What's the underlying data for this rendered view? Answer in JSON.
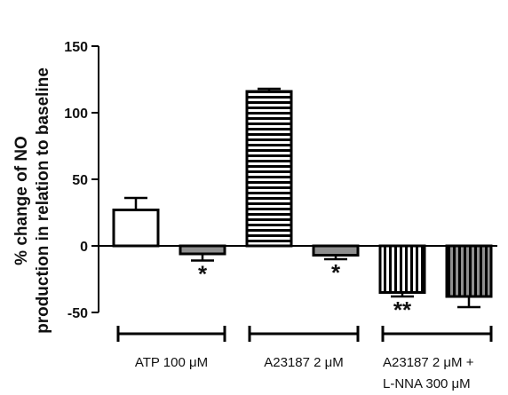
{
  "chart_data": {
    "type": "bar",
    "ylabel_line1": "% change of  NO",
    "ylabel_line2": "production in relation to baseline",
    "ylim": [
      -50,
      150
    ],
    "yticks": [
      -50,
      0,
      50,
      100,
      150
    ],
    "ytick_labels": [
      "-50",
      "0",
      "50",
      "100",
      "150"
    ],
    "grid": false,
    "bars": [
      {
        "value": 27,
        "error": 9,
        "fill": "white",
        "annotation": ""
      },
      {
        "value": -6,
        "error": 5,
        "fill": "gray",
        "annotation": "*"
      },
      {
        "value": 116,
        "error": 2,
        "fill": "horizontal-stripes",
        "annotation": ""
      },
      {
        "value": -7,
        "error": 3,
        "fill": "gray",
        "annotation": "*"
      },
      {
        "value": -35,
        "error": 3,
        "fill": "vertical-stripes",
        "annotation": "**"
      },
      {
        "value": -38,
        "error": 8,
        "fill": "gray-vertical-stripes",
        "annotation": ""
      }
    ],
    "groups": [
      {
        "line1": "ATP 100 μM",
        "line2": ""
      },
      {
        "line1": "A23187 2 μM",
        "line2": ""
      },
      {
        "line1": "A23187 2 μM +",
        "line2": "L-NNA 300 μM"
      }
    ],
    "colors": {
      "gray": "#8f8f8f",
      "stroke": "#000000"
    }
  }
}
